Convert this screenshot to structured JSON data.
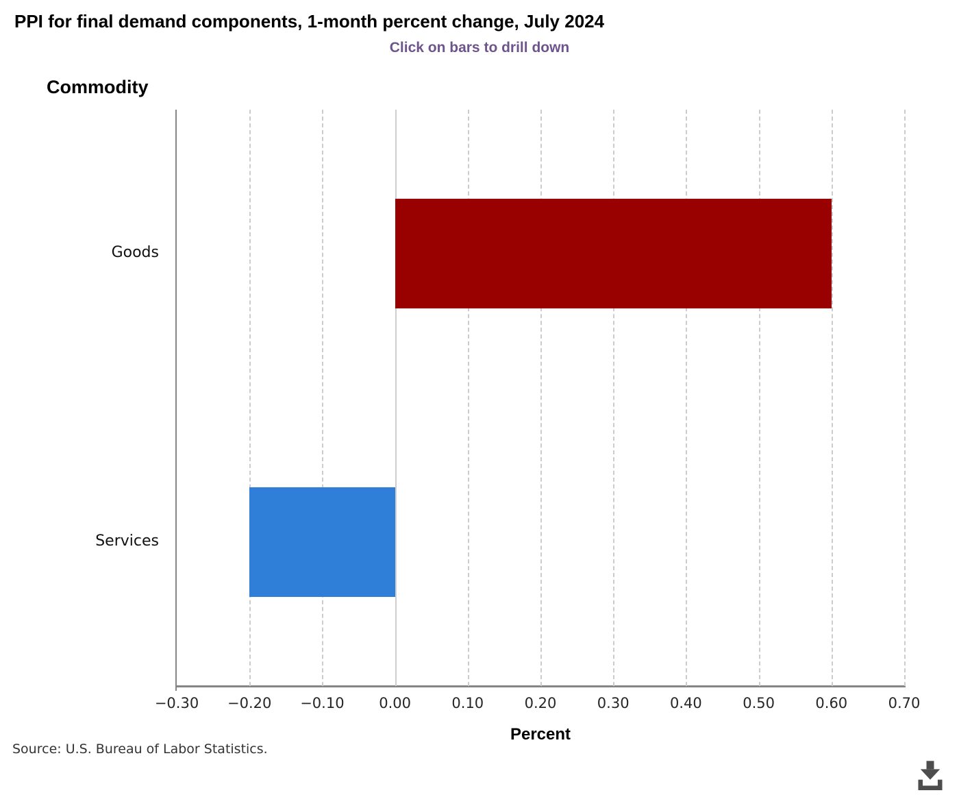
{
  "page": {
    "source": "Source: U.S. Bureau of Labor Statistics.",
    "download_icon": "download-icon"
  },
  "chart_data": {
    "type": "bar",
    "orientation": "horizontal",
    "title": "PPI for final demand components, 1-month percent change, July 2024",
    "subtitle": "Click on bars to drill down",
    "xlabel": "Percent",
    "ylabel": "Commodity",
    "categories": [
      "Goods",
      "Services"
    ],
    "values": [
      0.6,
      -0.2
    ],
    "series": [
      {
        "name": "1-month percent change",
        "values": [
          0.6,
          -0.2
        ]
      }
    ],
    "bar_colors": [
      "#990000",
      "#2f7ed8"
    ],
    "xlim": [
      -0.3,
      0.7
    ],
    "xtick_step": 0.1,
    "xtick_labels": [
      "−0.30",
      "−0.20",
      "−0.10",
      "0.00",
      "0.10",
      "0.20",
      "0.30",
      "0.40",
      "0.50",
      "0.60",
      "0.70"
    ],
    "grid": "vertical-dashed",
    "zero_line": "solid",
    "legend": "none",
    "interaction_hint": "bars drill down on click"
  },
  "colors": {
    "title": "#000000",
    "subtitle": "#6e548c",
    "goods_bar": "#990000",
    "services_bar": "#2f7ed8",
    "axis_line": "#858585",
    "gridline": "#cccccc",
    "tick_label": "#262626",
    "source_text": "#333333",
    "download_icon": "#4d4d4d",
    "background": "#ffffff"
  }
}
